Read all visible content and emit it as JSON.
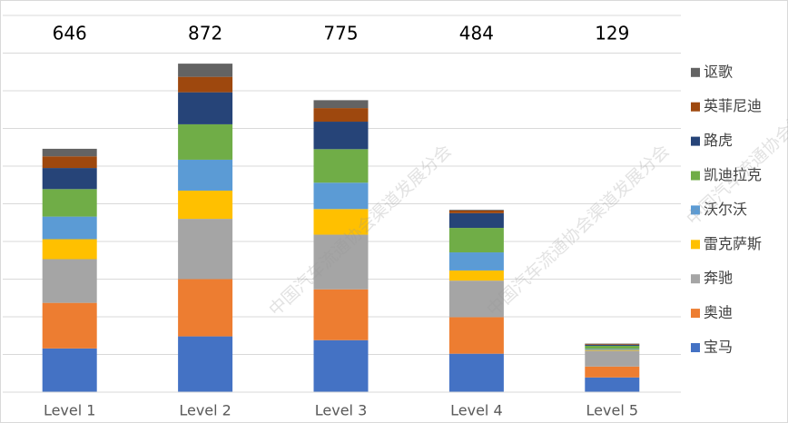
{
  "chart_data": {
    "type": "stacked_bar",
    "categories": [
      "Level 1",
      "Level 2",
      "Level 3",
      "Level 4",
      "Level 5"
    ],
    "totals": [
      646,
      872,
      775,
      484,
      129
    ],
    "watermark": "中国汽车流通协会渠道发展分会",
    "series": [
      {
        "name": "宝马",
        "color": "#4472c4",
        "values": [
          116,
          148,
          138,
          102,
          39
        ]
      },
      {
        "name": "奥迪",
        "color": "#ed7d31",
        "values": [
          121,
          152,
          135,
          97,
          29
        ]
      },
      {
        "name": "奔驰",
        "color": "#a5a5a5",
        "values": [
          116,
          160,
          145,
          97,
          42
        ]
      },
      {
        "name": "雷克萨斯",
        "color": "#ffc000",
        "values": [
          53,
          75,
          68,
          27,
          2
        ]
      },
      {
        "name": "沃尔沃",
        "color": "#5b9bd5",
        "values": [
          60,
          82,
          70,
          48,
          3
        ]
      },
      {
        "name": "凯迪拉克",
        "color": "#70ad47",
        "values": [
          73,
          94,
          89,
          65,
          8
        ]
      },
      {
        "name": "路虎",
        "color": "#264478",
        "values": [
          56,
          85,
          73,
          39,
          3
        ]
      },
      {
        "name": "英菲尼迪",
        "color": "#9e480e",
        "values": [
          31,
          41,
          36,
          7,
          2
        ]
      },
      {
        "name": "讴歌",
        "color": "#636363",
        "values": [
          20,
          35,
          21,
          2,
          1
        ]
      }
    ],
    "ylim": [
      0,
      1000
    ],
    "yticks": [
      0,
      100,
      200,
      300,
      400,
      500,
      600,
      700,
      800,
      900,
      1000
    ],
    "grid": true,
    "legend": "right"
  }
}
